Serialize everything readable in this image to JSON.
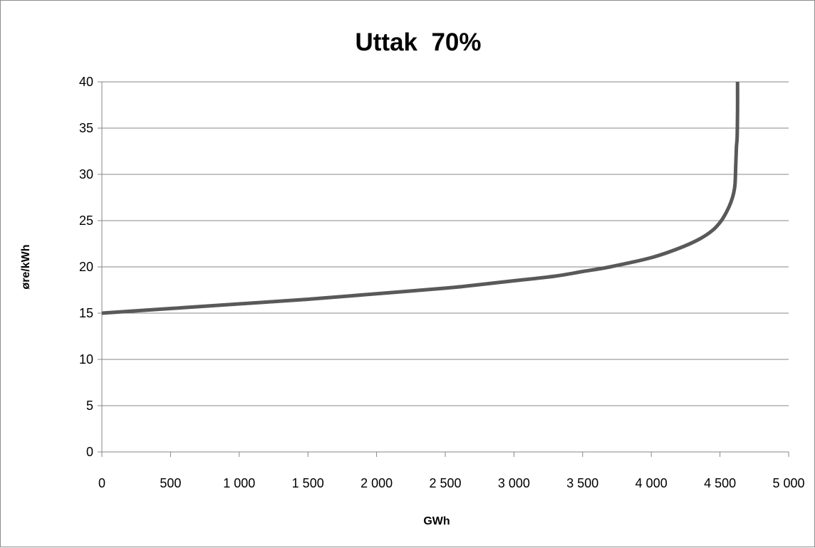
{
  "chart_data": {
    "type": "line",
    "title": "Uttak  70%",
    "xlabel": "GWh",
    "ylabel": "øre/kWh",
    "xlim": [
      0,
      5000
    ],
    "ylim": [
      0,
      40
    ],
    "x_ticks": [
      {
        "value": 0,
        "label": "0"
      },
      {
        "value": 500,
        "label": "500"
      },
      {
        "value": 1000,
        "label": "1 000"
      },
      {
        "value": 1500,
        "label": "1 500"
      },
      {
        "value": 2000,
        "label": "2 000"
      },
      {
        "value": 2500,
        "label": "2 500"
      },
      {
        "value": 3000,
        "label": "3 000"
      },
      {
        "value": 3500,
        "label": "3 500"
      },
      {
        "value": 4000,
        "label": "4 000"
      },
      {
        "value": 4500,
        "label": "4 500"
      },
      {
        "value": 5000,
        "label": "5 000"
      }
    ],
    "y_ticks": [
      {
        "value": 0,
        "label": "0"
      },
      {
        "value": 5,
        "label": "5"
      },
      {
        "value": 10,
        "label": "10"
      },
      {
        "value": 15,
        "label": "15"
      },
      {
        "value": 20,
        "label": "20"
      },
      {
        "value": 25,
        "label": "25"
      },
      {
        "value": 30,
        "label": "30"
      },
      {
        "value": 35,
        "label": "35"
      },
      {
        "value": 40,
        "label": "40"
      }
    ],
    "grid": "horizontal",
    "legend": "none",
    "series": [
      {
        "color": "#595959",
        "points": [
          {
            "x": 0,
            "y": 15
          },
          {
            "x": 500,
            "y": 15.5
          },
          {
            "x": 1000,
            "y": 16
          },
          {
            "x": 1500,
            "y": 16.5
          },
          {
            "x": 2000,
            "y": 17.1
          },
          {
            "x": 2500,
            "y": 17.7
          },
          {
            "x": 2700,
            "y": 18
          },
          {
            "x": 3000,
            "y": 18.5
          },
          {
            "x": 3300,
            "y": 19
          },
          {
            "x": 3500,
            "y": 19.5
          },
          {
            "x": 3700,
            "y": 20
          },
          {
            "x": 4000,
            "y": 21
          },
          {
            "x": 4200,
            "y": 22
          },
          {
            "x": 4350,
            "y": 23
          },
          {
            "x": 4450,
            "y": 24
          },
          {
            "x": 4510,
            "y": 25
          },
          {
            "x": 4550,
            "y": 26
          },
          {
            "x": 4580,
            "y": 27
          },
          {
            "x": 4600,
            "y": 28
          },
          {
            "x": 4610,
            "y": 29
          },
          {
            "x": 4615,
            "y": 31
          },
          {
            "x": 4620,
            "y": 33
          },
          {
            "x": 4625,
            "y": 34
          },
          {
            "x": 4628,
            "y": 37
          },
          {
            "x": 4628,
            "y": 40
          }
        ]
      }
    ]
  }
}
